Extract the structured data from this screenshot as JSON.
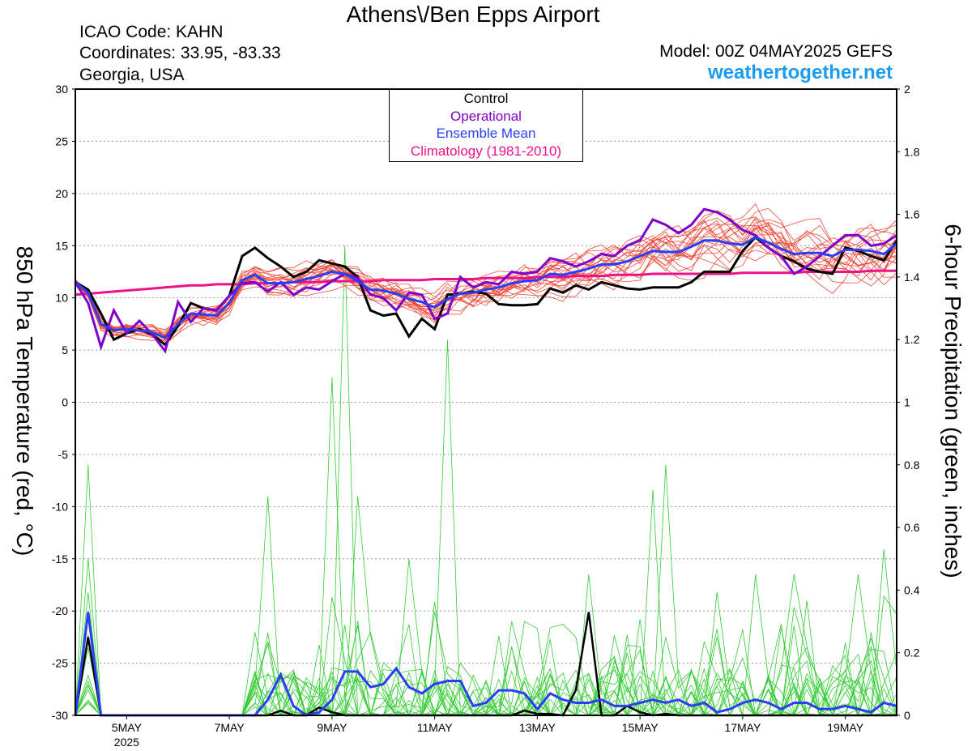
{
  "header": {
    "title": "Athens\\/Ben Epps Airport",
    "icao": "ICAO Code: KAHN",
    "coordinates": "Coordinates: 33.95, -83.33",
    "region": "Georgia, USA",
    "model": "Model: 00Z 04MAY2025 GEFS",
    "site": "weathertogether.net"
  },
  "axes": {
    "left_label": "850 hPa Temperature (red, °C)",
    "right_label": "6-hour Precipitation (green, inches)"
  },
  "legend": {
    "control": "Control",
    "operational": "Operational",
    "ensemble_mean": "Ensemble Mean",
    "climatology": "Climatology (1981-2010)"
  },
  "colors": {
    "control": "#000000",
    "operational": "#8000cc",
    "ensemble_mean": "#2a3ff5",
    "climatology": "#ee1188",
    "members_temp": "#f04a3a",
    "members_precip": "#33cc33",
    "website": "#1a9cf0",
    "grid": "#999999"
  },
  "chart_data": {
    "type": "line",
    "x_unit": "day of May 2025",
    "xlim": [
      4.0,
      20.0
    ],
    "x_ticks": [
      {
        "x": 5,
        "label": "5MAY",
        "sub": "2025"
      },
      {
        "x": 7,
        "label": "7MAY",
        "sub": ""
      },
      {
        "x": 9,
        "label": "9MAY",
        "sub": ""
      },
      {
        "x": 11,
        "label": "11MAY",
        "sub": ""
      },
      {
        "x": 13,
        "label": "13MAY",
        "sub": ""
      },
      {
        "x": 15,
        "label": "15MAY",
        "sub": ""
      },
      {
        "x": 17,
        "label": "17MAY",
        "sub": ""
      },
      {
        "x": 19,
        "label": "19MAY",
        "sub": ""
      }
    ],
    "y_left": {
      "label": "850 hPa Temperature (red, °C)",
      "lim": [
        -30,
        30
      ],
      "ticks": [
        "-30",
        "-25",
        "-20",
        "-15",
        "-10",
        "-5",
        "0",
        "5",
        "10",
        "15",
        "20",
        "25",
        "30"
      ]
    },
    "y_right": {
      "label": "6-hour Precipitation (green, inches)",
      "lim": [
        0,
        2
      ],
      "ticks": [
        "0",
        "0.2",
        "0.4",
        "0.6",
        "0.8",
        "1",
        "1.2",
        "1.4",
        "1.6",
        "1.8",
        "2"
      ]
    },
    "grid": true,
    "legend_position": "top-center",
    "temperature": {
      "x": [
        4.0,
        4.25,
        4.5,
        4.75,
        5.0,
        5.25,
        5.5,
        5.75,
        6.0,
        6.25,
        6.5,
        6.75,
        7.0,
        7.25,
        7.5,
        7.75,
        8.0,
        8.25,
        8.5,
        8.75,
        9.0,
        9.25,
        9.5,
        9.75,
        10.0,
        10.25,
        10.5,
        10.75,
        11.0,
        11.25,
        11.5,
        11.75,
        12.0,
        12.25,
        12.5,
        12.75,
        13.0,
        13.25,
        13.5,
        13.75,
        14.0,
        14.25,
        14.5,
        14.75,
        15.0,
        15.25,
        15.5,
        15.75,
        16.0,
        16.25,
        16.5,
        16.75,
        17.0,
        17.25,
        17.5,
        17.75,
        18.0,
        18.25,
        18.5,
        18.75,
        19.0,
        19.25,
        19.5,
        19.75,
        20.0
      ],
      "control": [
        11.5,
        10.8,
        8.5,
        6.0,
        6.6,
        7.0,
        6.5,
        5.5,
        7.3,
        9.5,
        9.0,
        8.8,
        10.2,
        14.0,
        14.8,
        13.8,
        13.0,
        12.0,
        12.5,
        13.6,
        13.3,
        13.0,
        12.0,
        8.8,
        8.3,
        8.5,
        6.3,
        8.0,
        7.0,
        10.3,
        10.4,
        10.6,
        10.4,
        9.4,
        9.3,
        9.3,
        9.4,
        10.9,
        10.5,
        11.2,
        10.8,
        11.5,
        11.2,
        10.9,
        10.8,
        11.0,
        11.0,
        11.0,
        11.5,
        12.5,
        12.5,
        12.5,
        14.5,
        15.8,
        14.8,
        14.0,
        13.5,
        12.8,
        12.5,
        12.3,
        14.8,
        14.5,
        14.0,
        13.6,
        15.5
      ],
      "operational": [
        11.5,
        9.5,
        5.3,
        8.8,
        6.6,
        7.8,
        6.5,
        4.9,
        9.6,
        7.7,
        9.0,
        8.8,
        10.2,
        11.4,
        11.5,
        10.6,
        11.5,
        10.3,
        11.0,
        10.8,
        11.6,
        12.3,
        11.9,
        10.3,
        10.0,
        8.8,
        10.5,
        10.3,
        8.0,
        8.5,
        12.0,
        11.0,
        11.5,
        11.3,
        12.5,
        12.3,
        12.5,
        13.8,
        13.5,
        13.0,
        13.5,
        14.2,
        14.0,
        15.0,
        15.5,
        17.5,
        17.0,
        16.2,
        17.0,
        18.5,
        18.2,
        17.5,
        16.5,
        16.0,
        14.8,
        14.0,
        12.3,
        13.0,
        14.0,
        15.0,
        16.0,
        16.0,
        15.0,
        15.2,
        16.0
      ],
      "ensemble_mean": [
        11.5,
        10.5,
        7.5,
        6.9,
        7.0,
        6.9,
        6.7,
        6.2,
        7.5,
        8.5,
        8.4,
        8.3,
        9.5,
        11.7,
        12.2,
        11.4,
        11.4,
        11.5,
        11.8,
        12.1,
        12.5,
        12.3,
        11.6,
        10.8,
        10.7,
        10.4,
        9.9,
        9.6,
        9.1,
        9.9,
        10.4,
        10.5,
        10.8,
        11.0,
        11.4,
        11.6,
        11.7,
        12.3,
        12.2,
        12.5,
        12.8,
        13.2,
        13.2,
        13.5,
        14.0,
        14.5,
        14.4,
        14.4,
        14.9,
        15.5,
        15.5,
        15.2,
        15.1,
        15.8,
        15.3,
        14.7,
        14.2,
        14.3,
        14.3,
        14.0,
        14.6,
        14.6,
        14.5,
        14.2,
        15.2
      ],
      "climatology": [
        10.3,
        10.4,
        10.5,
        10.6,
        10.7,
        10.8,
        10.9,
        11.0,
        11.1,
        11.2,
        11.2,
        11.3,
        11.3,
        11.3,
        11.4,
        11.4,
        11.4,
        11.5,
        11.5,
        11.5,
        11.6,
        11.6,
        11.6,
        11.6,
        11.7,
        11.7,
        11.7,
        11.7,
        11.8,
        11.8,
        11.8,
        11.8,
        11.9,
        11.9,
        11.9,
        11.9,
        12.0,
        12.0,
        12.0,
        12.1,
        12.1,
        12.1,
        12.2,
        12.2,
        12.2,
        12.3,
        12.3,
        12.3,
        12.3,
        12.3,
        12.3,
        12.3,
        12.4,
        12.4,
        12.4,
        12.4,
        12.4,
        12.5,
        12.5,
        12.5,
        12.5,
        12.5,
        12.6,
        12.6,
        12.6
      ],
      "members_count": 20,
      "members_spread_deg": 3.0
    },
    "precipitation": {
      "x": [
        4.0,
        4.25,
        4.5,
        4.75,
        5.0,
        5.25,
        5.5,
        5.75,
        6.0,
        6.25,
        6.5,
        6.75,
        7.0,
        7.25,
        7.5,
        7.75,
        8.0,
        8.25,
        8.5,
        8.75,
        9.0,
        9.25,
        9.5,
        9.75,
        10.0,
        10.25,
        10.5,
        10.75,
        11.0,
        11.25,
        11.5,
        11.75,
        12.0,
        12.25,
        12.5,
        12.75,
        13.0,
        13.25,
        13.5,
        13.75,
        14.0,
        14.25,
        14.5,
        14.75,
        15.0,
        15.25,
        15.5,
        15.75,
        16.0,
        16.25,
        16.5,
        16.75,
        17.0,
        17.25,
        17.5,
        17.75,
        18.0,
        18.25,
        18.5,
        18.75,
        19.0,
        19.25,
        19.5,
        19.75,
        20.0
      ],
      "control": [
        0,
        0.25,
        0,
        0,
        0,
        0,
        0,
        0,
        0,
        0,
        0,
        0,
        0,
        0,
        0,
        0,
        0.015,
        0,
        0,
        0.025,
        0.01,
        0,
        0,
        0,
        0,
        0,
        0,
        0,
        0,
        0,
        0,
        0,
        0,
        0,
        0,
        0.015,
        0.005,
        0.005,
        0,
        0.08,
        0.33,
        0,
        0,
        0.03,
        0.01,
        0,
        0.005,
        0,
        0,
        0,
        0,
        0,
        0,
        0,
        0,
        0,
        0,
        0,
        0,
        0,
        0,
        0,
        0,
        0,
        0
      ],
      "ensemble_mean": [
        0,
        0.33,
        0,
        0,
        0,
        0,
        0,
        0,
        0,
        0,
        0,
        0,
        0,
        0,
        0,
        0.05,
        0.13,
        0.03,
        0,
        0.01,
        0.05,
        0.14,
        0.14,
        0.09,
        0.1,
        0.15,
        0.09,
        0.07,
        0.1,
        0.11,
        0.11,
        0.03,
        0.04,
        0.08,
        0.08,
        0.07,
        0.02,
        0.07,
        0.05,
        0.04,
        0.04,
        0.05,
        0.03,
        0.03,
        0.04,
        0.05,
        0.04,
        0.05,
        0.03,
        0.04,
        0.01,
        0.02,
        0.04,
        0.05,
        0.04,
        0.02,
        0.04,
        0.04,
        0.02,
        0.02,
        0.03,
        0.02,
        0.01,
        0.04,
        0.03
      ],
      "members_peaks": [
        {
          "x": 4.25,
          "v": 0.8
        },
        {
          "x": 4.25,
          "v": 0.5
        },
        {
          "x": 7.75,
          "v": 0.7
        },
        {
          "x": 9.0,
          "v": 1.08
        },
        {
          "x": 9.25,
          "v": 1.5
        },
        {
          "x": 9.5,
          "v": 0.7
        },
        {
          "x": 11.25,
          "v": 1.2
        },
        {
          "x": 10.5,
          "v": 0.5
        },
        {
          "x": 13.25,
          "v": 0.28
        },
        {
          "x": 14.0,
          "v": 0.45
        },
        {
          "x": 15.25,
          "v": 0.72
        },
        {
          "x": 15.5,
          "v": 0.8
        },
        {
          "x": 17.25,
          "v": 0.45
        },
        {
          "x": 18.0,
          "v": 0.45
        },
        {
          "x": 19.25,
          "v": 0.45
        },
        {
          "x": 19.75,
          "v": 0.53
        },
        {
          "x": 12.5,
          "v": 0.3
        },
        {
          "x": 16.5,
          "v": 0.25
        }
      ],
      "members_count": 20
    }
  }
}
